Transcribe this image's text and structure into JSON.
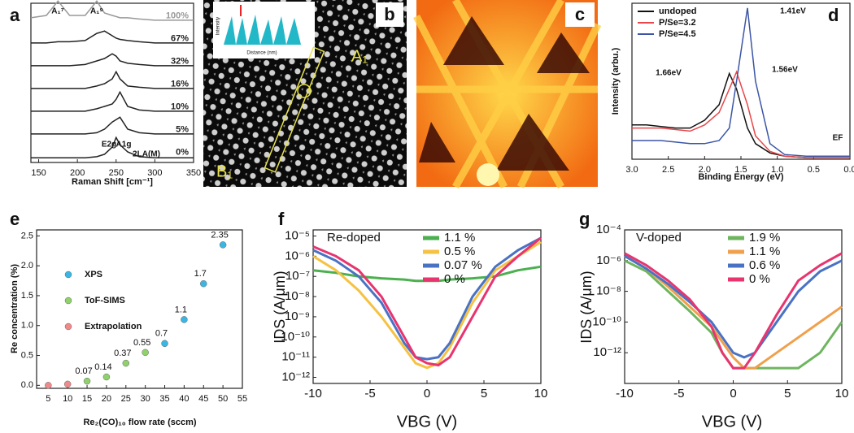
{
  "chart_data": [
    {
      "type": "spectra",
      "panel": "a",
      "xlabel": "Raman Shift [cm⁻¹]",
      "x": [
        140,
        160,
        175,
        190,
        210,
        225,
        235,
        245,
        250,
        255,
        265,
        280,
        300,
        330,
        350
      ],
      "xlim": [
        140,
        350
      ],
      "xticks": [
        150,
        200,
        250,
        300,
        350
      ],
      "series": [
        {
          "name": "100%",
          "color": "#999999",
          "values": [
            0.2,
            0.3,
            0.9,
            0.3,
            0.3,
            0.9,
            0.4,
            0.3,
            0.25,
            0.2,
            0.2,
            0.15,
            0.1,
            0.1,
            0.1
          ]
        },
        {
          "name": "67%",
          "color": "#222222",
          "values": [
            0.1,
            0.1,
            0.15,
            0.15,
            0.2,
            0.5,
            0.6,
            0.4,
            0.3,
            0.25,
            0.2,
            0.15,
            0.1,
            0.1,
            0.1
          ]
        },
        {
          "name": "32%",
          "color": "#222222",
          "values": [
            0.1,
            0.1,
            0.1,
            0.1,
            0.15,
            0.3,
            0.4,
            0.6,
            0.5,
            0.3,
            0.2,
            0.15,
            0.1,
            0.1,
            0.1
          ]
        },
        {
          "name": "16%",
          "color": "#222222",
          "values": [
            0.1,
            0.1,
            0.1,
            0.1,
            0.1,
            0.2,
            0.3,
            0.5,
            0.8,
            0.5,
            0.2,
            0.15,
            0.1,
            0.1,
            0.1
          ]
        },
        {
          "name": "10%",
          "color": "#222222",
          "values": [
            0.1,
            0.1,
            0.1,
            0.1,
            0.1,
            0.2,
            0.3,
            0.4,
            0.6,
            0.9,
            0.3,
            0.15,
            0.1,
            0.1,
            0.1
          ]
        },
        {
          "name": "5%",
          "color": "#222222",
          "values": [
            0.1,
            0.1,
            0.1,
            0.1,
            0.1,
            0.15,
            0.3,
            0.6,
            0.7,
            0.8,
            0.3,
            0.15,
            0.1,
            0.1,
            0.1
          ]
        },
        {
          "name": "0%",
          "color": "#222222",
          "values": [
            0.05,
            0.05,
            0.05,
            0.05,
            0.05,
            0.1,
            0.2,
            0.5,
            0.9,
            0.6,
            0.3,
            0.1,
            0.05,
            0.05,
            0.05
          ]
        }
      ],
      "annotations": [
        "A₁⁷",
        "A₁⁹",
        "E2g",
        "A1g",
        "2LA(M)"
      ]
    },
    {
      "type": "line",
      "panel": "d",
      "xlabel": "Binding Energy (eV)",
      "ylabel": "Intensity (arbu.)",
      "x": [
        3.0,
        2.8,
        2.6,
        2.4,
        2.2,
        2.0,
        1.8,
        1.66,
        1.56,
        1.41,
        1.3,
        1.1,
        0.9,
        0.6,
        0.3,
        0.0
      ],
      "xlim": [
        3.0,
        0.0
      ],
      "ylim": [
        0,
        1
      ],
      "xticks": [
        {
          "value": 3,
          "label": "3.0"
        },
        2.5,
        {
          "value": 2,
          "label": "2.0"
        },
        1.5,
        {
          "value": 1,
          "label": "1.0"
        },
        0.5,
        {
          "value": 0,
          "label": "0.0"
        }
      ],
      "series": [
        {
          "name": "undoped",
          "color": "#111111",
          "values": [
            0.22,
            0.22,
            0.21,
            0.2,
            0.2,
            0.25,
            0.35,
            0.55,
            0.45,
            0.2,
            0.1,
            0.04,
            0.02,
            0.01,
            0.01,
            0.01
          ]
        },
        {
          "name": "P/Se=3.2",
          "color": "#e8474a",
          "values": [
            0.2,
            0.2,
            0.2,
            0.19,
            0.18,
            0.22,
            0.3,
            0.45,
            0.56,
            0.35,
            0.15,
            0.05,
            0.02,
            0.01,
            0.01,
            0.01
          ]
        },
        {
          "name": "P/Se=4.5",
          "color": "#3b55a6",
          "values": [
            0.12,
            0.12,
            0.12,
            0.11,
            0.1,
            0.1,
            0.12,
            0.2,
            0.5,
            0.97,
            0.5,
            0.1,
            0.03,
            0.02,
            0.02,
            0.02
          ]
        }
      ],
      "annotations": [
        "1.66eV",
        "1.56eV",
        "1.41eV",
        "EF"
      ]
    },
    {
      "type": "scatter",
      "panel": "e",
      "xlabel": "Re₂(CO)₁₀ flow rate (sccm)",
      "ylabel": "Re concentration (%)",
      "xlim": [
        2,
        55
      ],
      "xticks": [
        5,
        10,
        15,
        20,
        25,
        30,
        35,
        40,
        45,
        50,
        55
      ],
      "ylim": [
        -0.05,
        2.6
      ],
      "yticks": [
        {
          "value": 0,
          "label": "0.0"
        },
        0.5,
        {
          "value": 1,
          "label": "1.0"
        },
        1.5,
        {
          "value": 2,
          "label": "2.0"
        },
        2.5
      ],
      "series": [
        {
          "name": "XPS",
          "color": "#3bb6e3",
          "x": [
            35,
            40,
            45,
            50
          ],
          "values": [
            0.7,
            1.1,
            1.7,
            2.35
          ]
        },
        {
          "name": "ToF-SIMS",
          "color": "#8fd16a",
          "x": [
            15,
            20,
            25,
            30
          ],
          "values": [
            0.07,
            0.14,
            0.37,
            0.55
          ]
        },
        {
          "name": "Extrapolation",
          "color": "#f08a8a",
          "x": [
            5,
            10
          ],
          "values": [
            0,
            0.02
          ]
        }
      ]
    },
    {
      "type": "line",
      "panel": "f",
      "xlabel": "VBG (V)",
      "ylabel": "IDS (A/μm)",
      "log_y": true,
      "x": [
        -10,
        -8,
        -6,
        -4,
        -2,
        -1,
        0,
        1,
        2,
        4,
        6,
        8,
        10
      ],
      "xlim": [
        -10,
        10
      ],
      "xticks": [
        -10,
        -5,
        0,
        5,
        10
      ],
      "ylim": [
        5e-13,
        2e-05
      ],
      "yticks": [
        {
          "value": 1e-12,
          "label": "10⁻¹²"
        },
        {
          "value": 1e-11,
          "label": "10⁻¹¹"
        },
        {
          "value": 1e-10,
          "label": "10⁻¹⁰"
        },
        {
          "value": 1e-09,
          "label": "10⁻⁹"
        },
        {
          "value": 1e-08,
          "label": "10⁻⁸"
        },
        {
          "value": 1e-07,
          "label": "10⁻⁷"
        },
        {
          "value": 1e-06,
          "label": "10⁻⁶"
        },
        {
          "value": 1e-05,
          "label": "10⁻⁵"
        }
      ],
      "series": [
        {
          "name": "1.1 %",
          "color": "#4caf50",
          "values": [
            2e-07,
            1.5e-07,
            1e-07,
            8e-08,
            7e-08,
            6e-08,
            6e-08,
            6e-08,
            7e-08,
            8e-08,
            1e-07,
            2e-07,
            3e-07
          ]
        },
        {
          "name": "0.5 %",
          "color": "#f5c242",
          "values": [
            1e-06,
            2e-07,
            2e-08,
            1e-09,
            3e-11,
            5e-12,
            3e-12,
            5e-12,
            3e-11,
            5e-09,
            2e-07,
            1e-06,
            5e-06
          ]
        },
        {
          "name": "0.07 %",
          "color": "#4a72c4",
          "values": [
            2e-06,
            6e-07,
            1e-07,
            5e-09,
            5e-11,
            1e-11,
            8e-12,
            1e-11,
            5e-11,
            1e-08,
            3e-07,
            2e-06,
            8e-06
          ]
        },
        {
          "name": "0 %",
          "color": "#e8346f",
          "values": [
            3e-06,
            1e-06,
            2e-07,
            1e-08,
            1e-10,
            1e-11,
            5e-12,
            4e-12,
            1e-11,
            1e-09,
            1e-07,
            1e-06,
            8e-06
          ]
        }
      ],
      "annotations": [
        "Re-doped"
      ]
    },
    {
      "type": "line",
      "panel": "g",
      "xlabel": "VBG (V)",
      "ylabel": "IDS (A/μm)",
      "log_y": true,
      "x": [
        -10,
        -8,
        -6,
        -4,
        -2,
        -1,
        0,
        1,
        2,
        4,
        6,
        8,
        10
      ],
      "xlim": [
        -10,
        10
      ],
      "xticks": [
        -10,
        -5,
        0,
        5,
        10
      ],
      "ylim": [
        1e-14,
        0.0001
      ],
      "yticks": [
        {
          "value": 1e-12,
          "label": "10⁻¹²"
        },
        {
          "value": 1e-10,
          "label": "10⁻¹⁰"
        },
        {
          "value": 1e-08,
          "label": "10⁻⁸"
        },
        {
          "value": 1e-06,
          "label": "10⁻⁶"
        },
        {
          "value": 0.0001,
          "label": "10⁻⁴"
        }
      ],
      "series": [
        {
          "name": "1.9 %",
          "color": "#6fb55f",
          "values": [
            1e-06,
            2e-07,
            1e-08,
            5e-10,
            2e-11,
            1e-12,
            1e-13,
            1e-13,
            1e-13,
            1e-13,
            1e-13,
            1e-12,
            1e-10
          ]
        },
        {
          "name": "1.1 %",
          "color": "#f0a04b",
          "values": [
            2e-06,
            3e-07,
            2e-08,
            1e-09,
            5e-11,
            5e-12,
            5e-13,
            1e-13,
            1e-13,
            1e-12,
            1e-11,
            1e-10,
            1e-09
          ]
        },
        {
          "name": "0.6 %",
          "color": "#4a72c4",
          "values": [
            2e-06,
            3e-07,
            3e-08,
            2e-09,
            1e-10,
            1e-11,
            1e-12,
            5e-13,
            1e-12,
            1e-10,
            1e-08,
            2e-07,
            1e-06
          ]
        },
        {
          "name": "0 %",
          "color": "#e8346f",
          "values": [
            3e-06,
            5e-07,
            5e-08,
            3e-09,
            5e-11,
            1e-12,
            1e-13,
            1e-13,
            1e-12,
            3e-10,
            5e-08,
            5e-07,
            3e-06
          ]
        }
      ],
      "annotations": [
        "V-doped"
      ]
    }
  ],
  "images": {
    "b": {
      "panel": "b",
      "markers": [
        "A₁",
        "B₁"
      ],
      "inset": {
        "ylabel": "Intensity",
        "xlabel": "Distance (nm)"
      }
    },
    "c": {
      "panel": "c"
    }
  }
}
